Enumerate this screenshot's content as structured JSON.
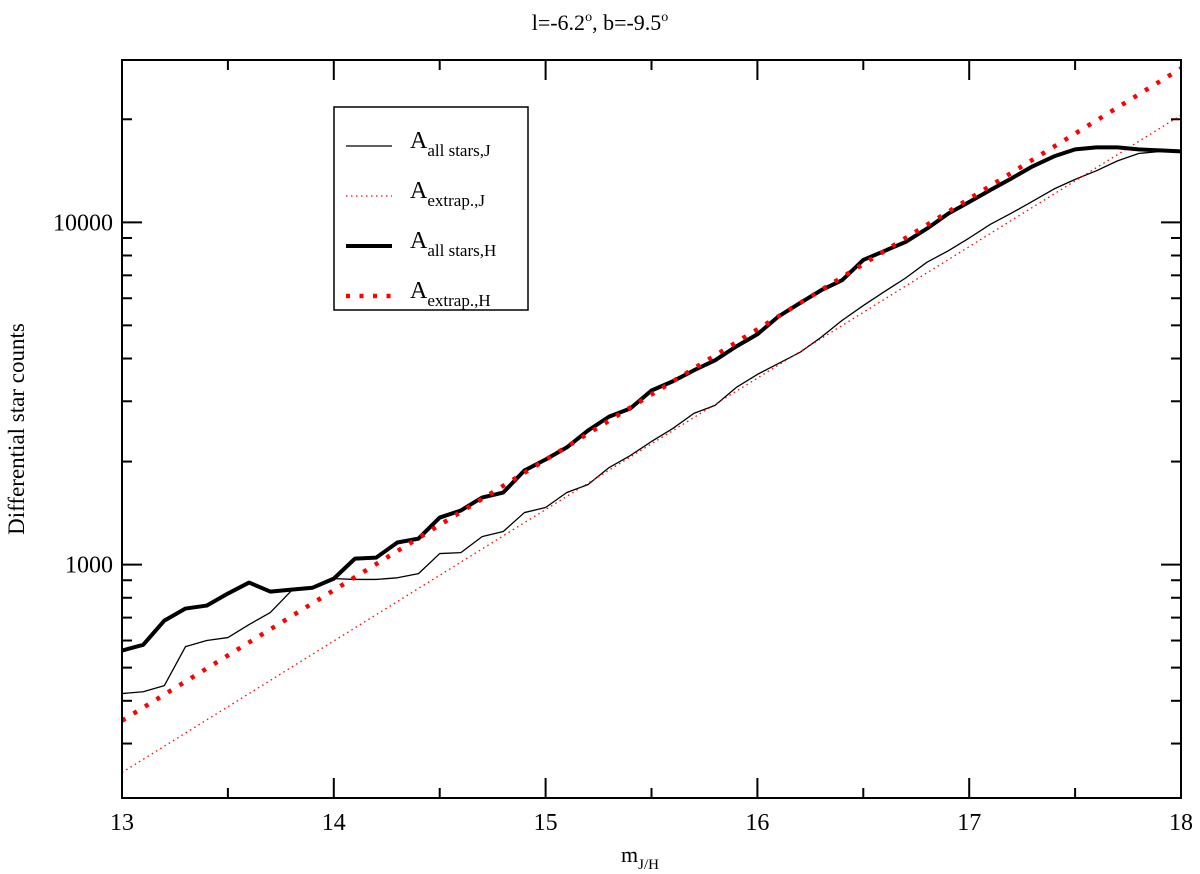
{
  "chart_data": {
    "type": "line",
    "title": {
      "main": "l=-6.2",
      "sup1": "o",
      "mid": ", b=-9.5",
      "sup2": "o"
    },
    "xlabel": {
      "main": "m",
      "sub": "J/H"
    },
    "ylabel": "Differential star counts",
    "xlim": [
      13,
      18
    ],
    "ylim": [
      208,
      29800
    ],
    "yscale": "log",
    "xticks": [
      "13",
      "14",
      "15",
      "16",
      "17",
      "18"
    ],
    "yticks": [
      "1000",
      "10000"
    ],
    "legend_position": "top-left",
    "x": [
      13.0,
      13.1,
      13.2,
      13.3,
      13.4,
      13.5,
      13.6,
      13.7,
      13.8,
      13.9,
      14.0,
      14.1,
      14.2,
      14.3,
      14.4,
      14.5,
      14.6,
      14.7,
      14.8,
      14.9,
      15.0,
      15.1,
      15.2,
      15.3,
      15.4,
      15.5,
      15.6,
      15.7,
      15.8,
      15.9,
      16.0,
      16.1,
      16.2,
      16.3,
      16.4,
      16.5,
      16.6,
      16.7,
      16.8,
      16.9,
      17.0,
      17.1,
      17.2,
      17.3,
      17.4,
      17.5,
      17.6,
      17.7,
      17.8,
      17.9,
      18.0
    ],
    "series": [
      {
        "name": "all stars,J",
        "label_main": "A",
        "label_sub": "all stars,J",
        "color": "#000000",
        "style": "thin",
        "values": [
          420,
          425,
          443,
          576,
          600,
          612,
          668,
          724,
          839,
          856,
          910,
          905,
          905,
          915,
          941,
          1077,
          1084,
          1207,
          1249,
          1419,
          1468,
          1624,
          1713,
          1921,
          2083,
          2289,
          2497,
          2765,
          2918,
          3292,
          3595,
          3870,
          4166,
          4610,
          5170,
          5713,
          6275,
          6875,
          7640,
          8250,
          8998,
          9866,
          10640,
          11530,
          12510,
          13350,
          14140,
          15120,
          15890,
          16110,
          16220
        ]
      },
      {
        "name": "extrap.,J",
        "label_main": "A",
        "label_sub": "extrap.,J",
        "color": "#ff0000",
        "style": "thin-dotted",
        "line_endpoints": {
          "x": [
            13,
            18
          ],
          "y": [
            247,
            20560
          ]
        }
      },
      {
        "name": "all stars,H",
        "label_main": "A",
        "label_sub": "all stars,H",
        "color": "#000000",
        "style": "thick",
        "values": [
          561,
          583,
          686,
          744,
          759,
          823,
          886,
          834,
          845,
          856,
          910,
          1041,
          1048,
          1160,
          1191,
          1372,
          1439,
          1570,
          1624,
          1883,
          2028,
          2200,
          2463,
          2706,
          2858,
          3226,
          3430,
          3694,
          3953,
          4338,
          4708,
          5310,
          5802,
          6327,
          6774,
          7762,
          8250,
          8763,
          9577,
          10590,
          11460,
          12430,
          13440,
          14580,
          15580,
          16330,
          16560,
          16560,
          16330,
          16220,
          16110
        ]
      },
      {
        "name": "extrap.,H",
        "label_main": "A",
        "label_sub": "extrap.,H",
        "color": "#ff0000",
        "style": "thick-dotted",
        "line_endpoints": {
          "x": [
            13,
            18
          ],
          "y": [
            350,
            28164
          ]
        }
      }
    ]
  }
}
